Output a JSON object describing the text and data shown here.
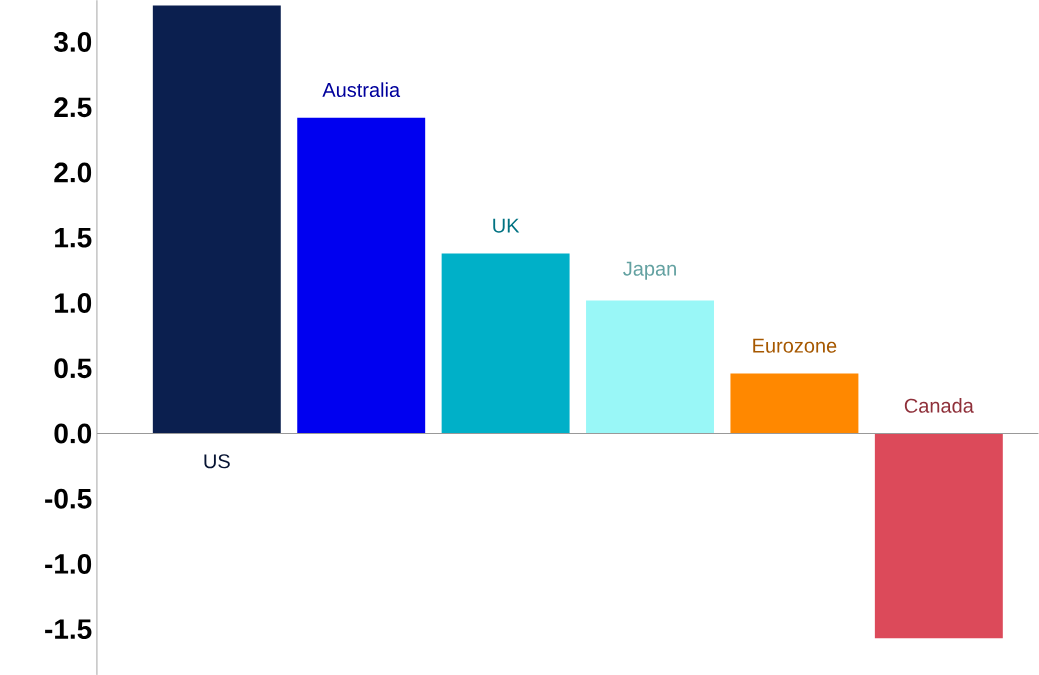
{
  "chart_data": {
    "type": "bar",
    "categories": [
      "US",
      "Australia",
      "UK",
      "Japan",
      "Eurozone",
      "Canada"
    ],
    "values": [
      3.28,
      2.42,
      1.38,
      1.02,
      0.46,
      -1.57
    ],
    "colors": [
      "#0b1f4f",
      "#0000f0",
      "#00b0c8",
      "#99f7f7",
      "#ff8800",
      "#dc4a5a"
    ],
    "ylim": [
      -1.85,
      3.32
    ],
    "yticks": [
      {
        "value": -1.5,
        "label": "-1.5"
      },
      {
        "value": -1.0,
        "label": "-1.0"
      },
      {
        "value": -0.5,
        "label": "-0.5"
      },
      {
        "value": 0,
        "label": "0.0"
      },
      {
        "value": 0.5,
        "label": "0.5"
      },
      {
        "value": 1.0,
        "label": "1.0"
      },
      {
        "value": 1.5,
        "label": "1.5"
      },
      {
        "value": 2.0,
        "label": "2.0"
      },
      {
        "value": 2.5,
        "label": "2.5"
      },
      {
        "value": 3.0,
        "label": "3.0"
      }
    ],
    "tick_labels": "y"
  }
}
